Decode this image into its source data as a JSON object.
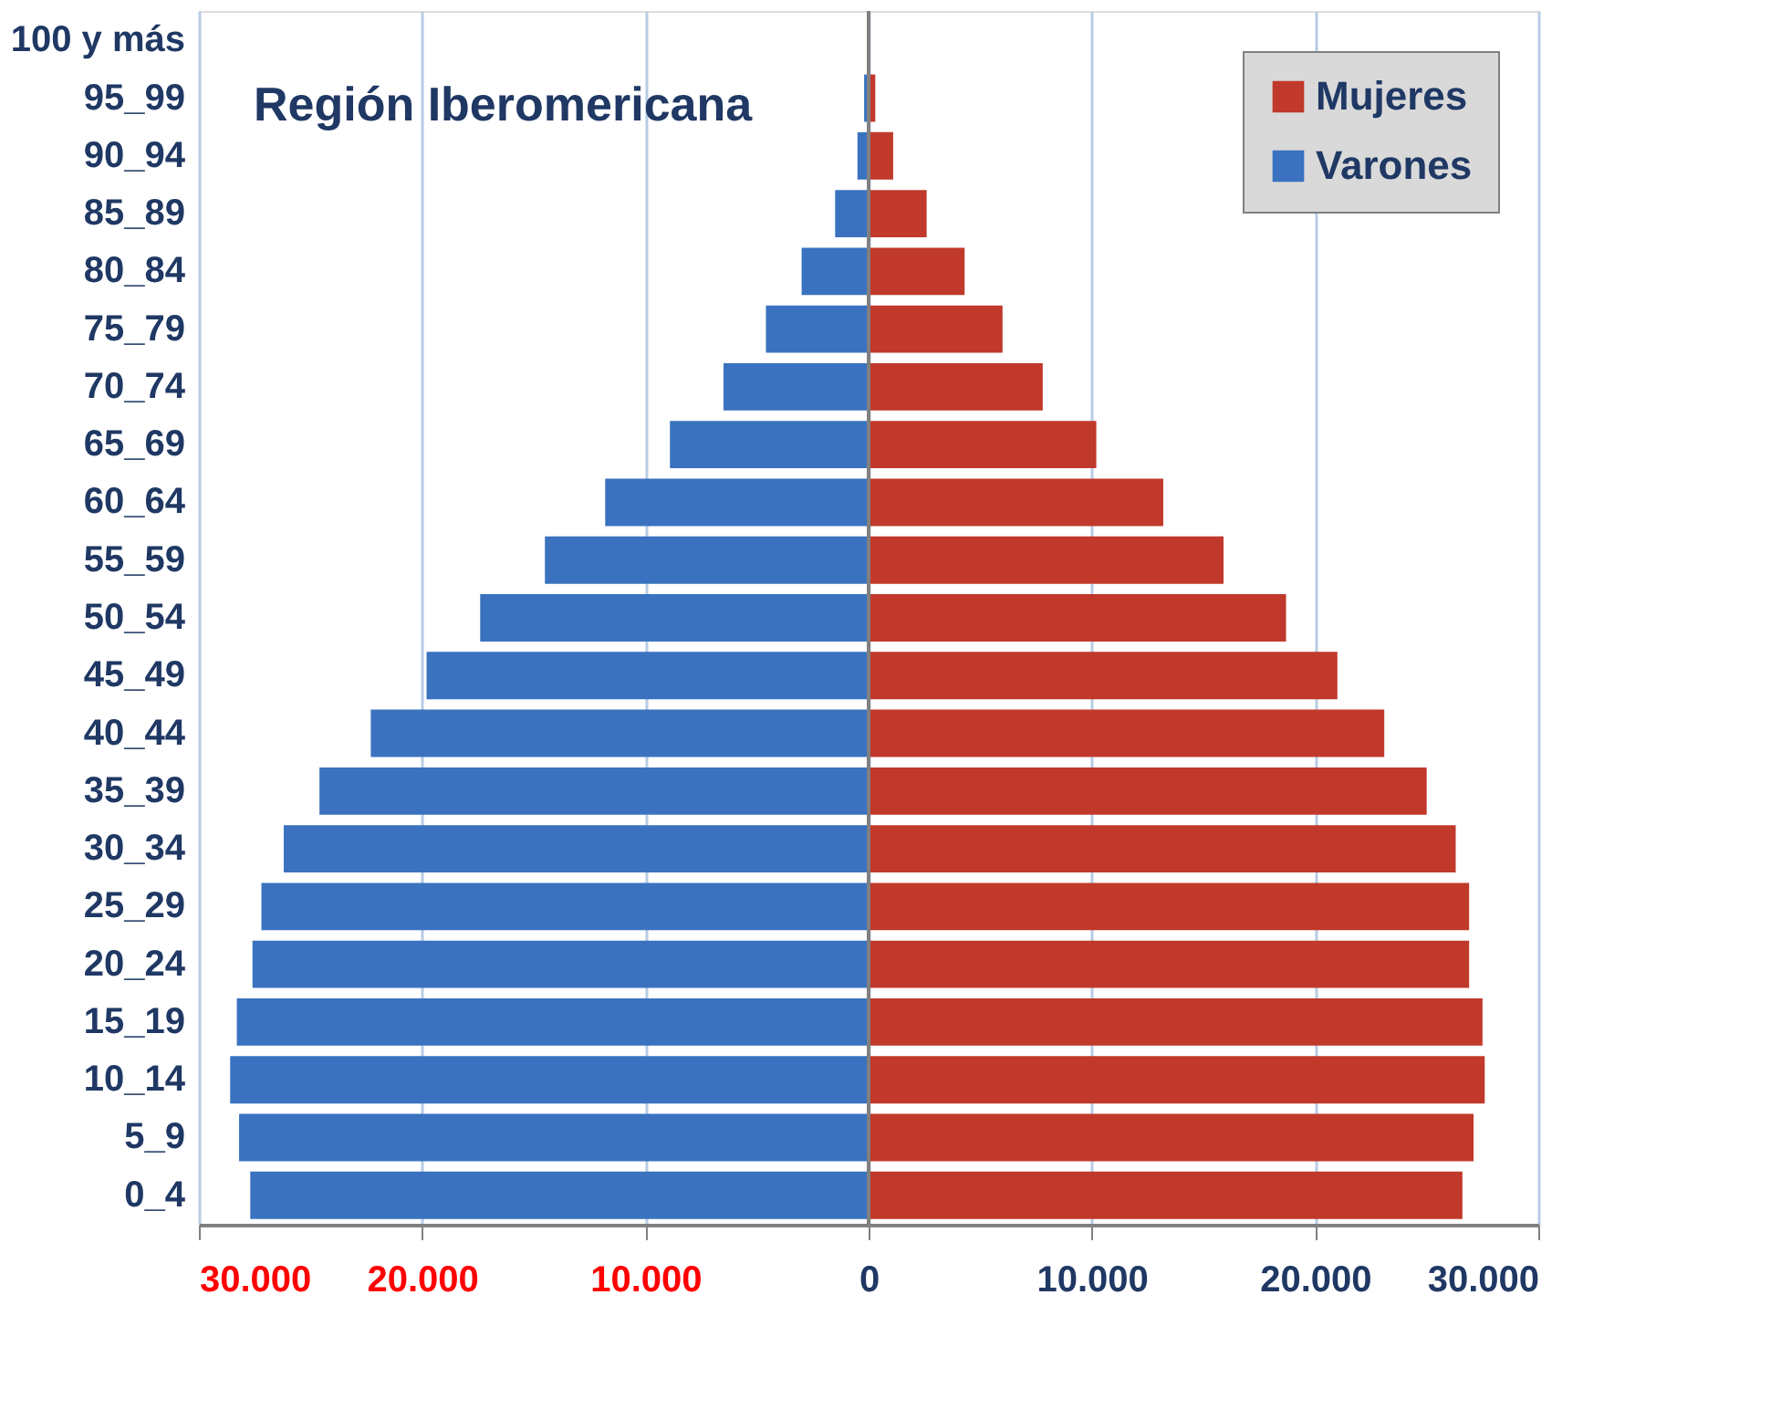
{
  "chart_data": {
    "type": "bar",
    "orientation": "horizontal",
    "stacked": true,
    "title": "Región Iberomericana",
    "categories": [
      "100 y más",
      "95_99",
      "90_94",
      "85_89",
      "80_84",
      "75_79",
      "70_74",
      "65_69",
      "60_64",
      "55_59",
      "50_54",
      "45_49",
      "40_44",
      "35_39",
      "30_34",
      "25_29",
      "20_24",
      "15_19",
      "10_14",
      "5_9",
      "0_4"
    ],
    "series": [
      {
        "name": "Mujeres",
        "color": "#c0392b",
        "values": [
          0,
          300,
          1100,
          2600,
          4300,
          6000,
          7800,
          10200,
          13200,
          15900,
          18700,
          21000,
          23100,
          25000,
          26300,
          26900,
          26900,
          27500,
          27600,
          27100,
          26600
        ]
      },
      {
        "name": "Varones",
        "color": "#3a72c0",
        "values": [
          0,
          -200,
          -500,
          -1500,
          -3000,
          -4600,
          -6500,
          -8900,
          -11800,
          -14500,
          -17400,
          -19800,
          -22300,
          -24600,
          -26200,
          -27200,
          -27600,
          -28300,
          -28600,
          -28200,
          -27700
        ]
      }
    ],
    "xlim": [
      -30000,
      30000
    ],
    "xticks": [
      {
        "value": -30000,
        "label": "30.000"
      },
      {
        "value": -20000,
        "label": "20.000"
      },
      {
        "value": -10000,
        "label": "10.000"
      },
      0,
      {
        "value": 10000,
        "label": "10.000"
      },
      {
        "value": 20000,
        "label": "20.000"
      },
      {
        "value": 30000,
        "label": "30.000"
      }
    ],
    "grid": "x",
    "legend": "top right"
  }
}
